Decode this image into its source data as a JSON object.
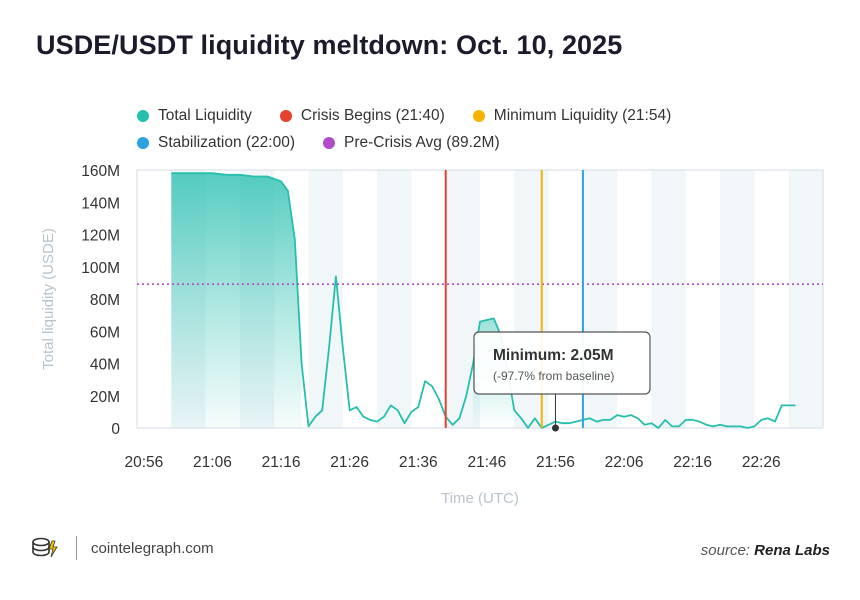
{
  "title": "USDE/USDT liquidity meltdown: Oct. 10, 2025",
  "colors": {
    "liquidity": "#26bfae",
    "crisis": "#e8402e",
    "minimum": "#f5b400",
    "stabilization": "#2aa3e0",
    "avg": "#b04cc7"
  },
  "legend": [
    {
      "label": "Total Liquidity",
      "color": "#26bfae"
    },
    {
      "label": "Crisis Begins (21:40)",
      "color": "#e8402e"
    },
    {
      "label": "Minimum Liquidity (21:54)",
      "color": "#f5b400"
    },
    {
      "label": "Stabilization (22:00)",
      "color": "#2aa3e0"
    },
    {
      "label": "Pre-Crisis Avg (89.2M)",
      "color": "#b04cc7"
    }
  ],
  "chart_data": {
    "type": "area",
    "xlabel": "Time (UTC)",
    "ylabel": "Total liquidity (USDE)",
    "x_range": [
      "20:55",
      "22:35"
    ],
    "ylim": [
      0,
      160
    ],
    "y_unit": "M",
    "x_ticks": [
      "20:56",
      "21:06",
      "21:16",
      "21:26",
      "21:36",
      "21:46",
      "21:56",
      "22:06",
      "22:16",
      "22:26"
    ],
    "y_ticks": [
      "0",
      "20M",
      "40M",
      "60M",
      "80M",
      "100M",
      "120M",
      "140M",
      "160M"
    ],
    "grid": "vertical-bands",
    "series": [
      {
        "name": "Total Liquidity",
        "x": [
          "21:00",
          "21:02",
          "21:04",
          "21:06",
          "21:08",
          "21:10",
          "21:12",
          "21:14",
          "21:16",
          "21:17",
          "21:18",
          "21:19",
          "21:20",
          "21:21",
          "21:22",
          "21:23",
          "21:24",
          "21:25",
          "21:26",
          "21:27",
          "21:28",
          "21:29",
          "21:30",
          "21:31",
          "21:32",
          "21:33",
          "21:34",
          "21:35",
          "21:36",
          "21:37",
          "21:38",
          "21:39",
          "21:40",
          "21:41",
          "21:42",
          "21:43",
          "21:44",
          "21:45",
          "21:46",
          "21:47",
          "21:48",
          "21:49",
          "21:50",
          "21:51",
          "21:52",
          "21:53",
          "21:54",
          "21:55",
          "21:56",
          "21:57",
          "21:58",
          "21:59",
          "22:00",
          "22:01",
          "22:02",
          "22:03",
          "22:04",
          "22:05",
          "22:06",
          "22:07",
          "22:08",
          "22:09",
          "22:10",
          "22:11",
          "22:12",
          "22:13",
          "22:14",
          "22:15",
          "22:16",
          "22:17",
          "22:18",
          "22:19",
          "22:20",
          "22:21",
          "22:22",
          "22:23",
          "22:24",
          "22:25",
          "22:26",
          "22:27",
          "22:28",
          "22:29",
          "22:30",
          "22:31"
        ],
        "values": [
          158,
          158,
          158,
          158,
          157,
          157,
          156,
          156,
          153,
          147,
          117,
          40,
          1,
          7,
          11,
          50,
          94,
          50,
          11,
          13,
          7,
          5,
          4,
          7,
          14,
          11,
          3,
          10,
          13,
          29,
          26,
          18,
          7,
          2,
          6,
          20,
          40,
          66,
          67,
          68,
          58,
          36,
          11,
          6,
          0,
          6,
          0,
          2,
          4,
          3,
          3,
          4,
          5,
          6,
          4,
          5,
          5,
          8,
          7,
          8,
          6,
          2,
          3,
          0,
          5,
          1,
          1,
          5,
          5,
          4,
          2,
          1,
          2,
          1,
          1,
          1,
          0,
          1,
          5,
          6,
          4,
          14,
          14,
          14
        ],
        "fill_until": "21:19"
      }
    ],
    "markers": [
      {
        "name": "Crisis Begins (21:40)",
        "x": "21:40",
        "style": "vertical-line"
      },
      {
        "name": "Minimum Liquidity (21:54)",
        "x": "21:54",
        "style": "vertical-line"
      },
      {
        "name": "Stabilization (22:00)",
        "x": "22:00",
        "style": "vertical-line"
      },
      {
        "name": "Pre-Crisis Avg (89.2M)",
        "y": 89.2,
        "style": "horizontal-dotted"
      }
    ],
    "annotation": {
      "title": "Minimum: 2.05M",
      "subtitle": "(-97.7% from baseline)",
      "x": "21:56",
      "y": 0
    }
  },
  "footer": {
    "brand": "cointelegraph.com",
    "source_prefix": "source:",
    "source_name": "Rena Labs"
  }
}
